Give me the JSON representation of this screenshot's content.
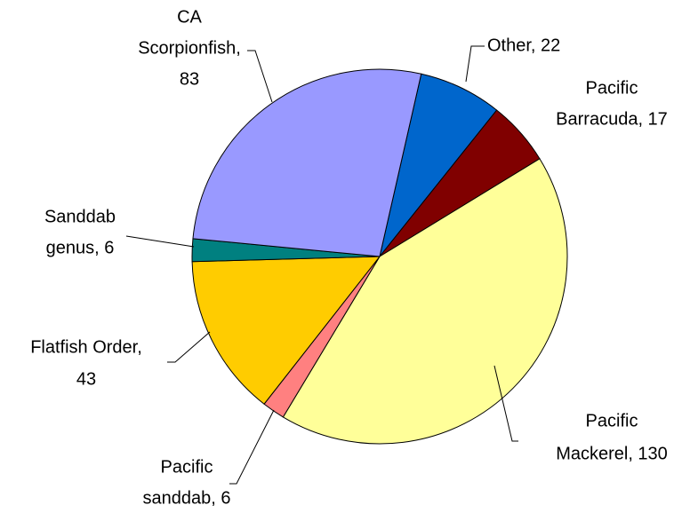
{
  "chart_data": {
    "type": "pie",
    "values": [
      22,
      17,
      130,
      6,
      43,
      6,
      83
    ],
    "value_labels": [
      [
        "Other, 22"
      ],
      [
        "Pacific",
        "Barracuda, 17"
      ],
      [
        "Pacific",
        "Mackerel, 130"
      ],
      [
        "Pacific",
        "sanddab, 6"
      ],
      [
        "Flatfish Order,",
        "43"
      ],
      [
        "Sanddab",
        "genus, 6"
      ],
      [
        "CA",
        "Scorpionfish,",
        "83"
      ]
    ],
    "colors": [
      "#0066cc",
      "#800000",
      "#ffff99",
      "#ff8080",
      "#ffcc00",
      "#008080",
      "#9999ff"
    ]
  }
}
